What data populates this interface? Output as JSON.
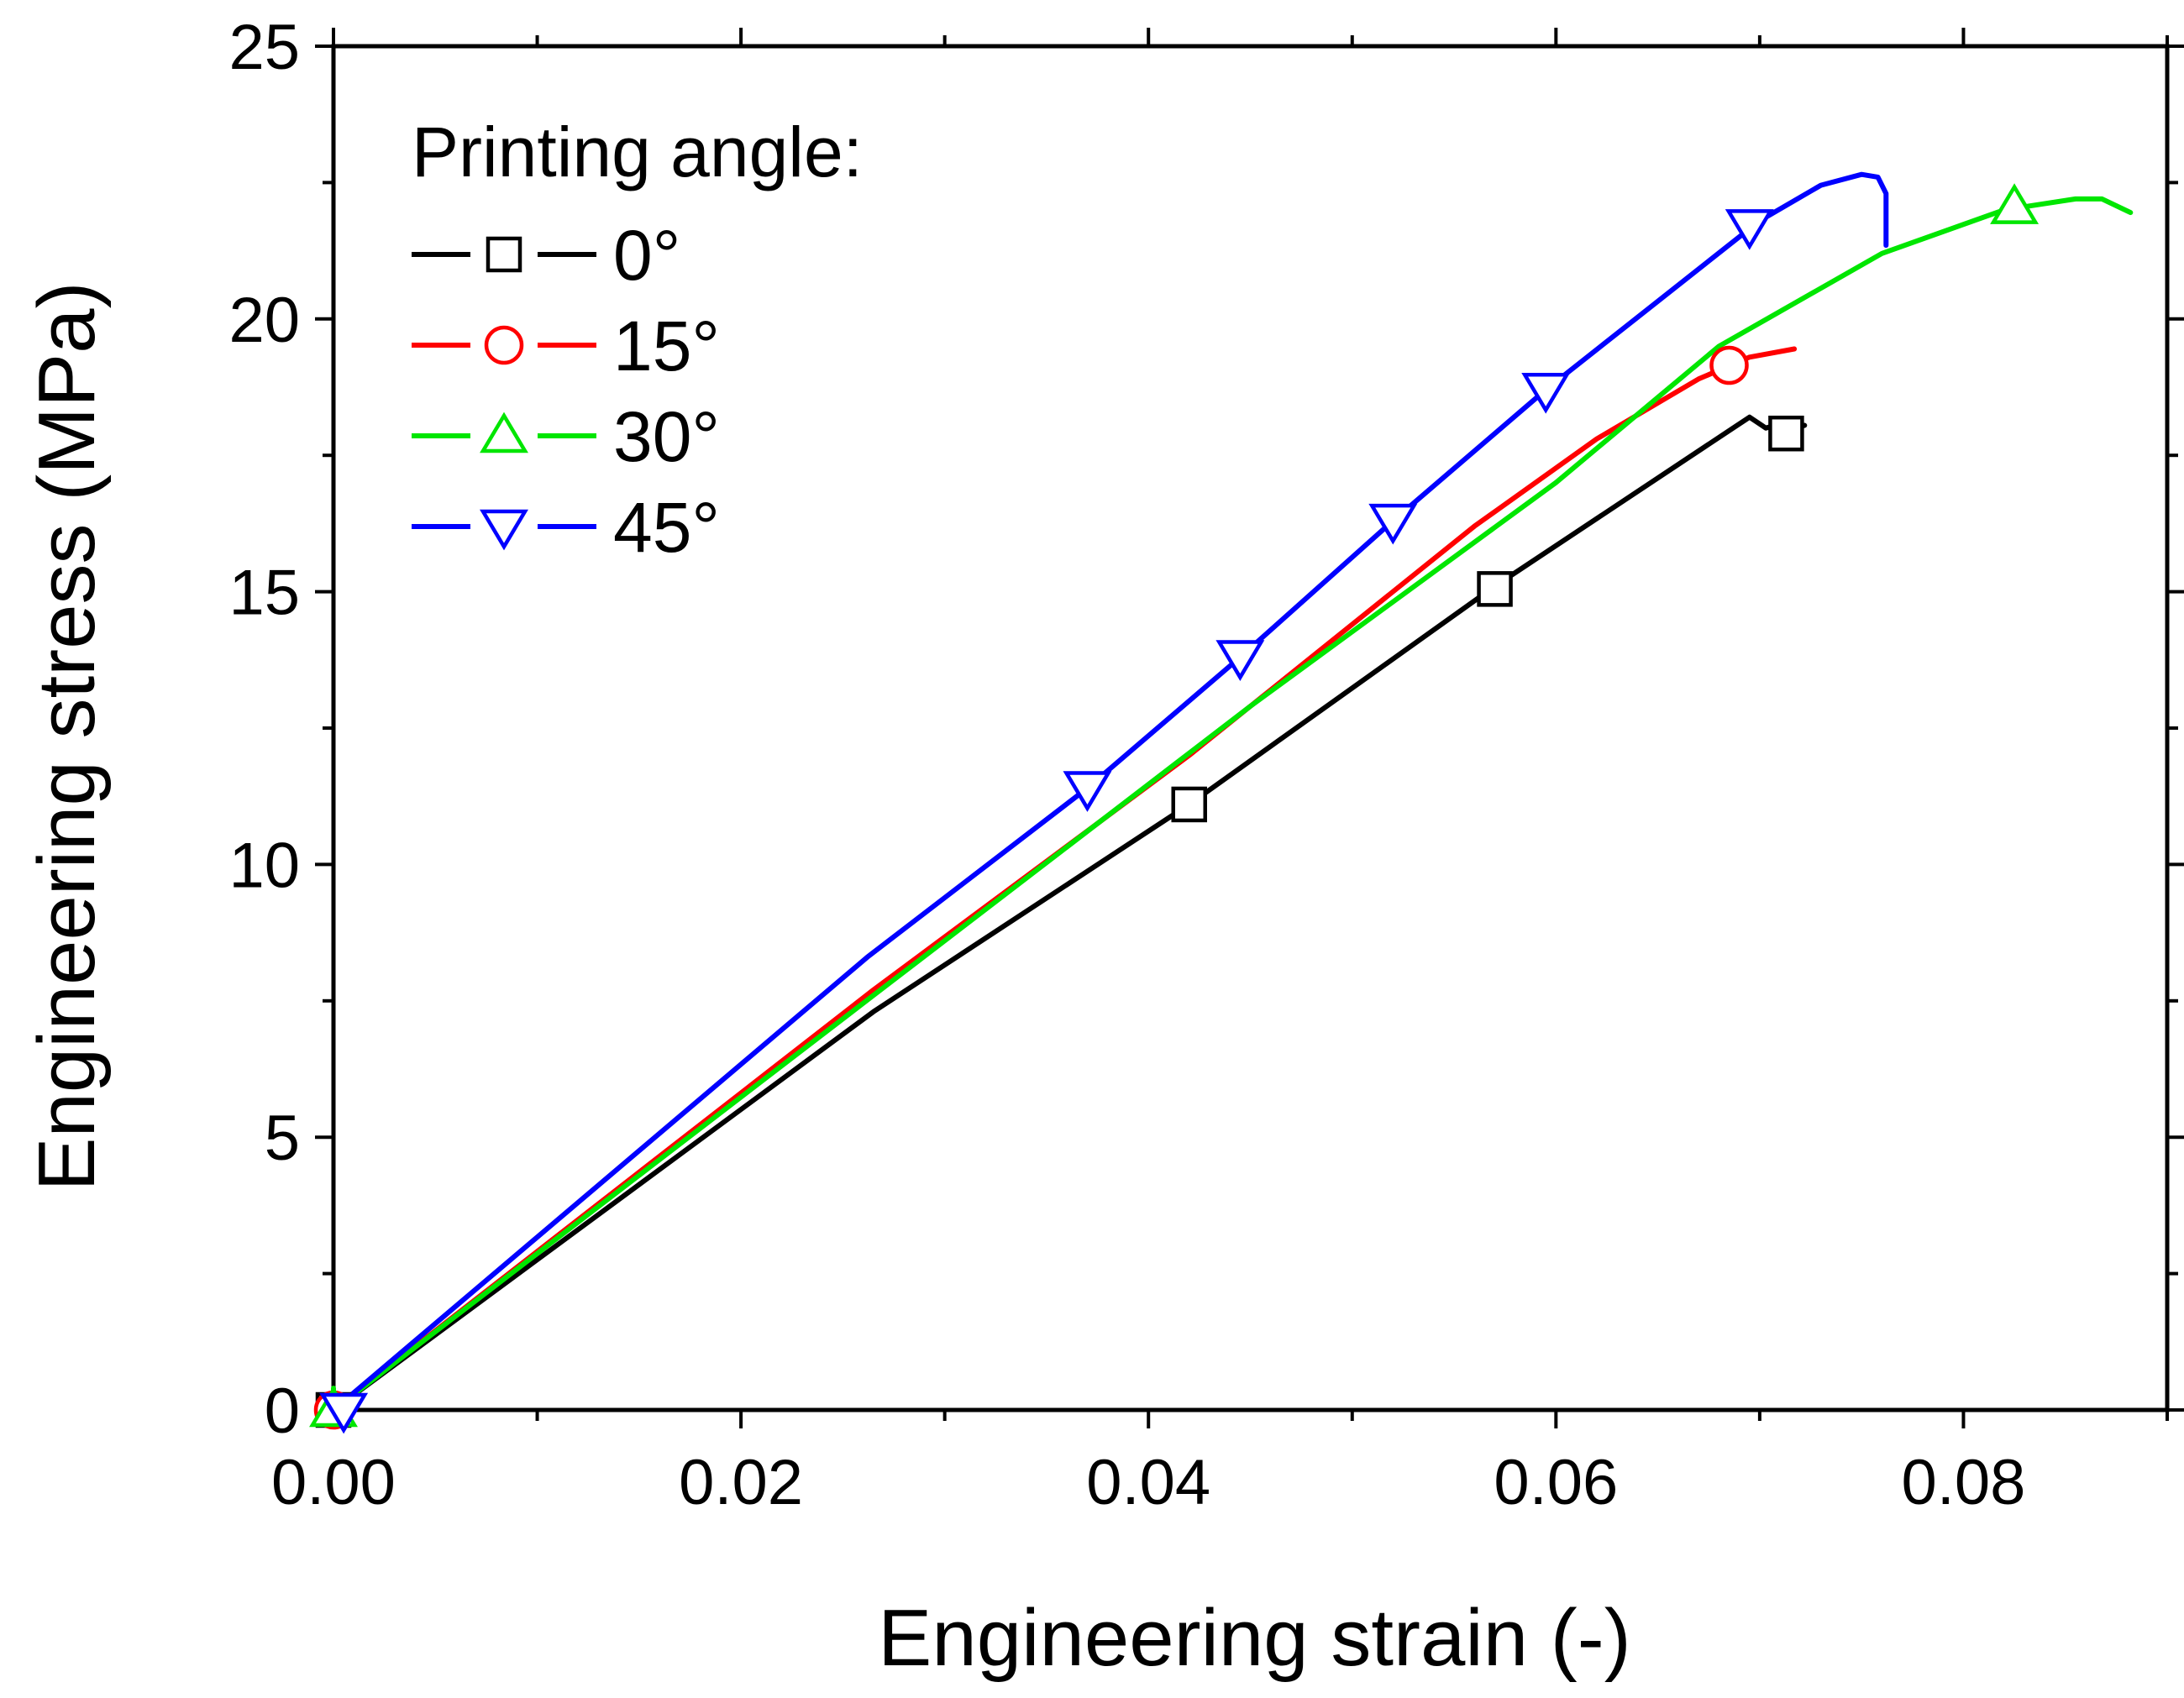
{
  "chart_data": {
    "type": "line",
    "xlabel": "Engineering strain (-)",
    "ylabel": "Engineering stress (MPa)",
    "xlim": [
      0.0,
      0.09
    ],
    "ylim": [
      0,
      25
    ],
    "x_ticks": [
      "0.00",
      "0.02",
      "0.04",
      "0.06",
      "0.08"
    ],
    "x_tick_values": [
      0.0,
      0.02,
      0.04,
      0.06,
      0.08
    ],
    "y_ticks": [
      "0",
      "5",
      "10",
      "15",
      "20",
      "25"
    ],
    "y_tick_values": [
      0,
      5,
      10,
      15,
      20,
      25
    ],
    "grid": false,
    "legend": {
      "title": "Printing angle:",
      "placement": "top-left",
      "entries": [
        {
          "label": "0°",
          "color": "#000000",
          "marker": "square"
        },
        {
          "label": "15°",
          "color": "#ff0000",
          "marker": "circle"
        },
        {
          "label": "30°",
          "color": "#00e600",
          "marker": "triangle-up"
        },
        {
          "label": "45°",
          "color": "#0000ff",
          "marker": "triangle-down"
        }
      ]
    },
    "series": [
      {
        "name": "0°",
        "color": "#000000",
        "marker": "square",
        "points": [
          [
            0.0,
            0.0
          ],
          [
            0.0265,
            7.3
          ],
          [
            0.042,
            11.1
          ],
          [
            0.057,
            15.1
          ],
          [
            0.0695,
            18.2
          ],
          [
            0.0703,
            18.0
          ],
          [
            0.0713,
            18.1
          ],
          [
            0.0718,
            18.0
          ],
          [
            0.0722,
            18.05
          ]
        ],
        "markers": [
          [
            0.0,
            0.0
          ],
          [
            0.042,
            11.1
          ],
          [
            0.057,
            15.05
          ],
          [
            0.0713,
            17.9
          ]
        ]
      },
      {
        "name": "15°",
        "color": "#ff0000",
        "marker": "circle",
        "points": [
          [
            0.0,
            0.0
          ],
          [
            0.0265,
            7.7
          ],
          [
            0.042,
            12.0
          ],
          [
            0.056,
            16.2
          ],
          [
            0.062,
            17.8
          ],
          [
            0.067,
            18.9
          ],
          [
            0.0695,
            19.3
          ],
          [
            0.0717,
            19.45
          ]
        ],
        "markers": [
          [
            0.0,
            0.0
          ],
          [
            0.0685,
            19.15
          ]
        ]
      },
      {
        "name": "30°",
        "color": "#00e600",
        "marker": "triangle-up",
        "points": [
          [
            0.0,
            0.4
          ],
          [
            0.0,
            0.0
          ],
          [
            0.0265,
            7.6
          ],
          [
            0.045,
            12.9
          ],
          [
            0.06,
            17.0
          ],
          [
            0.068,
            19.5
          ],
          [
            0.076,
            21.2
          ],
          [
            0.082,
            22.0
          ],
          [
            0.0855,
            22.2
          ],
          [
            0.0868,
            22.2
          ],
          [
            0.0882,
            21.95
          ]
        ],
        "markers": [
          [
            0.0,
            0.0
          ],
          [
            0.0825,
            22.05
          ]
        ]
      },
      {
        "name": "45°",
        "color": "#0000ff",
        "marker": "triangle-down",
        "points": [
          [
            0.0,
            0.0
          ],
          [
            0.0262,
            8.3
          ],
          [
            0.037,
            11.4
          ],
          [
            0.0445,
            13.8
          ],
          [
            0.052,
            16.3
          ],
          [
            0.0595,
            18.7
          ],
          [
            0.07,
            21.8
          ],
          [
            0.073,
            22.45
          ],
          [
            0.075,
            22.65
          ],
          [
            0.0758,
            22.6
          ],
          [
            0.0762,
            22.3
          ],
          [
            0.0762,
            21.35
          ]
        ],
        "markers": [
          [
            0.0005,
            0.0
          ],
          [
            0.037,
            11.4
          ],
          [
            0.0445,
            13.8
          ],
          [
            0.052,
            16.3
          ],
          [
            0.0595,
            18.7
          ],
          [
            0.0695,
            21.7
          ]
        ]
      }
    ]
  }
}
